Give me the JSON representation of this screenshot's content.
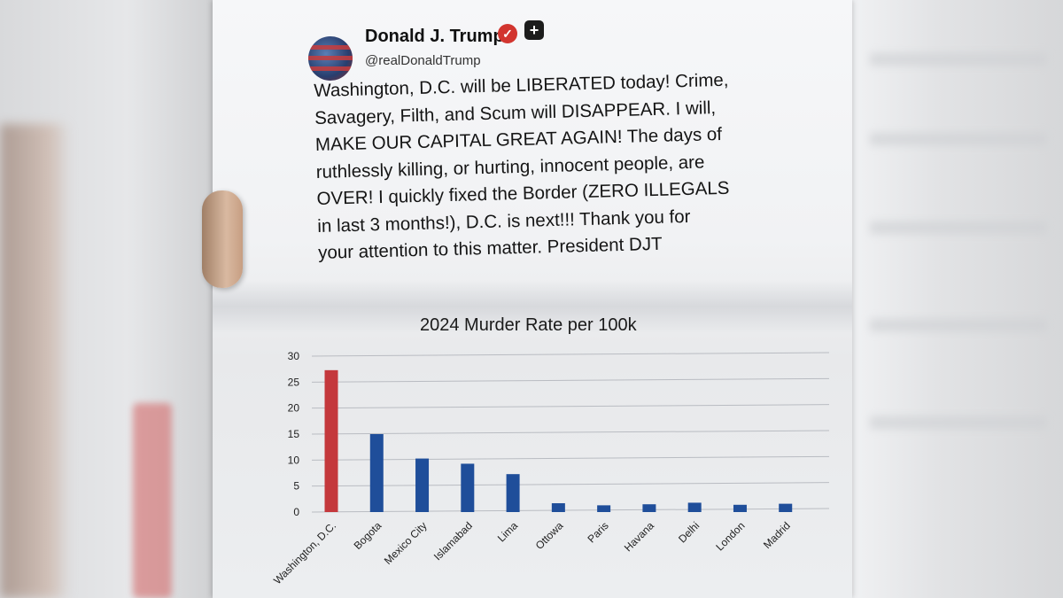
{
  "tweet": {
    "author_name": "Donald J. Trump",
    "handle": "@realDonaldTrump",
    "lines": [
      "Washington, D.C. will be LIBERATED today! Crime,",
      "Savagery, Filth, and Scum will DISAPPEAR. I will,",
      "MAKE OUR CAPITAL GREAT AGAIN! The days of",
      "ruthlessly killing, or hurting, innocent people, are",
      "OVER! I quickly fixed the Border (ZERO ILLEGALS",
      "in last 3 months!), D.C. is next!!! Thank you for",
      "your attention to this matter. President DJT"
    ],
    "verified_icon": "check-badge-icon",
    "verified_color": "#d2352f",
    "plus_badge_icon": "plus-badge-icon"
  },
  "chart_data": {
    "type": "bar",
    "title": "2024 Murder Rate per 100k",
    "categories": [
      "Washington, D.C.",
      "Bogota",
      "Mexico City",
      "Islamabad",
      "Lima",
      "Ottowa",
      "Paris",
      "Havana",
      "Delhi",
      "London",
      "Madrid"
    ],
    "values": [
      27.3,
      15,
      10.3,
      9.3,
      7.3,
      1.7,
      1.3,
      1.5,
      1.8,
      1.4,
      1.6
    ],
    "bar_colors": [
      "#c4383c",
      "#1f4e9a",
      "#1f4e9a",
      "#1f4e9a",
      "#1f4e9a",
      "#1f4e9a",
      "#1f4e9a",
      "#1f4e9a",
      "#1f4e9a",
      "#1f4e9a",
      "#1f4e9a"
    ],
    "yticks": [
      "0",
      "5",
      "10",
      "15",
      "20",
      "25",
      "30"
    ],
    "ylim": [
      0,
      30
    ],
    "grid": true,
    "xlabel": "",
    "ylabel": ""
  }
}
